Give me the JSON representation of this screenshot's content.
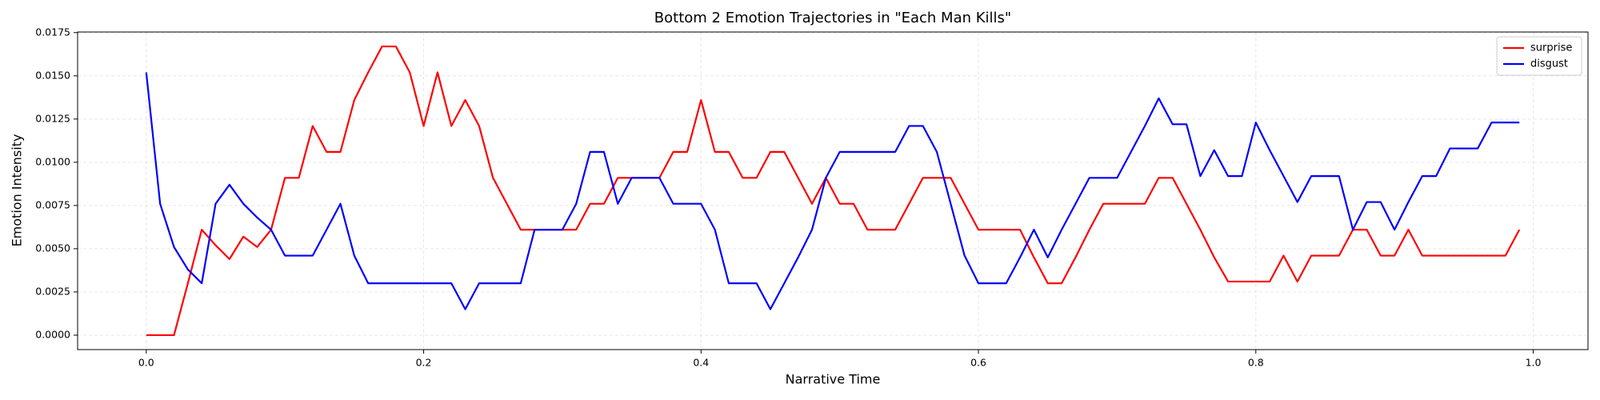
{
  "chart_data": {
    "type": "line",
    "title": "Bottom 2 Emotion Trajectories in \"Each Man Kills\"",
    "x_label": "Narrative Time",
    "y_label": "Emotion Intensity",
    "x": [
      0,
      0.01,
      0.02,
      0.03,
      0.04,
      0.05,
      0.06,
      0.07,
      0.08,
      0.09,
      0.1,
      0.11,
      0.12,
      0.13,
      0.14,
      0.15,
      0.16,
      0.17,
      0.18,
      0.19,
      0.2,
      0.21,
      0.22,
      0.23,
      0.24,
      0.25,
      0.26,
      0.27,
      0.28,
      0.29,
      0.3,
      0.31,
      0.32,
      0.33,
      0.34,
      0.35,
      0.36,
      0.37,
      0.38,
      0.39,
      0.4,
      0.41,
      0.42,
      0.43,
      0.44,
      0.45,
      0.46,
      0.47,
      0.48,
      0.49,
      0.5,
      0.51,
      0.52,
      0.53,
      0.54,
      0.55,
      0.56,
      0.57,
      0.58,
      0.59,
      0.6,
      0.61,
      0.62,
      0.63,
      0.64,
      0.65,
      0.66,
      0.67,
      0.68,
      0.69,
      0.7,
      0.71,
      0.72,
      0.73,
      0.74,
      0.75,
      0.76,
      0.77,
      0.78,
      0.79,
      0.8,
      0.81,
      0.82,
      0.83,
      0.84,
      0.85,
      0.86,
      0.87,
      0.88,
      0.89,
      0.9,
      0.91,
      0.92,
      0.93,
      0.94,
      0.95,
      0.96,
      0.97,
      0.98,
      0.99
    ],
    "series": [
      {
        "name": "surprise",
        "color": "#ff0000",
        "values": [
          0,
          0,
          0,
          0.003,
          0.0061,
          0.0052,
          0.0044,
          0.0057,
          0.0051,
          0.0061,
          0.0091,
          0.0091,
          0.0121,
          0.0106,
          0.0106,
          0.0136,
          0.0152,
          0.0167,
          0.0167,
          0.0152,
          0.0121,
          0.0152,
          0.0121,
          0.0136,
          0.0121,
          0.0091,
          0.0076,
          0.0061,
          0.0061,
          0.0061,
          0.0061,
          0.0061,
          0.0076,
          0.0076,
          0.0091,
          0.0091,
          0.0091,
          0.0091,
          0.0106,
          0.0106,
          0.0136,
          0.0106,
          0.0106,
          0.0091,
          0.0091,
          0.0106,
          0.0106,
          0.0091,
          0.0076,
          0.0091,
          0.0076,
          0.0076,
          0.0061,
          0.0061,
          0.0061,
          0.0076,
          0.0091,
          0.0091,
          0.0091,
          0.0076,
          0.0061,
          0.0061,
          0.0061,
          0.0061,
          0.0045,
          0.003,
          0.003,
          0.0045,
          0.0061,
          0.0076,
          0.0076,
          0.0076,
          0.0076,
          0.0091,
          0.0091,
          0.0076,
          0.0061,
          0.0045,
          0.0031,
          0.0031,
          0.0031,
          0.0031,
          0.0046,
          0.0031,
          0.0046,
          0.0046,
          0.0046,
          0.0061,
          0.0061,
          0.0046,
          0.0046,
          0.0061,
          0.0046,
          0.0046,
          0.0046,
          0.0046,
          0.0046,
          0.0046,
          0.0046,
          0.0061
        ]
      },
      {
        "name": "disgust",
        "color": "#0000ff",
        "values": [
          0.0152,
          0.0076,
          0.0051,
          0.0038,
          0.003,
          0.0076,
          0.0087,
          0.0076,
          0.0068,
          0.0061,
          0.0046,
          0.0046,
          0.0046,
          0.0061,
          0.0076,
          0.0046,
          0.003,
          0.003,
          0.003,
          0.003,
          0.003,
          0.003,
          0.003,
          0.0015,
          0.003,
          0.003,
          0.003,
          0.003,
          0.0061,
          0.0061,
          0.0061,
          0.0076,
          0.0106,
          0.0106,
          0.0076,
          0.0091,
          0.0091,
          0.0091,
          0.0076,
          0.0076,
          0.0076,
          0.0061,
          0.003,
          0.003,
          0.003,
          0.0015,
          0.003,
          0.0045,
          0.0061,
          0.0091,
          0.0106,
          0.0106,
          0.0106,
          0.0106,
          0.0106,
          0.0121,
          0.0121,
          0.0106,
          0.0076,
          0.0046,
          0.003,
          0.003,
          0.003,
          0.0045,
          0.0061,
          0.0045,
          0.0061,
          0.0076,
          0.0091,
          0.0091,
          0.0091,
          0.0106,
          0.0121,
          0.0137,
          0.0122,
          0.0122,
          0.0092,
          0.0107,
          0.0092,
          0.0092,
          0.0123,
          0.0107,
          0.0092,
          0.0077,
          0.0092,
          0.0092,
          0.0092,
          0.0061,
          0.0077,
          0.0077,
          0.0061,
          0.0077,
          0.0092,
          0.0092,
          0.0108,
          0.0108,
          0.0108,
          0.0123,
          0.0123,
          0.0123
        ]
      }
    ],
    "xlim": [
      -0.0495,
      1.0395
    ],
    "ylim": [
      -0.000835,
      0.017535
    ],
    "xticks": [
      {
        "value": 0,
        "label": "0.0"
      },
      0.2,
      0.4,
      0.6,
      0.8,
      {
        "value": 1,
        "label": "1.0"
      }
    ],
    "yticks": [
      {
        "value": 0,
        "label": "0.0000"
      },
      0.0025,
      {
        "value": 0.005,
        "label": "0.0050"
      },
      0.0075,
      {
        "value": 0.01,
        "label": "0.0100"
      },
      0.0125,
      {
        "value": 0.015,
        "label": "0.0150"
      },
      0.0175
    ],
    "grid": true,
    "legend": "upper right"
  }
}
